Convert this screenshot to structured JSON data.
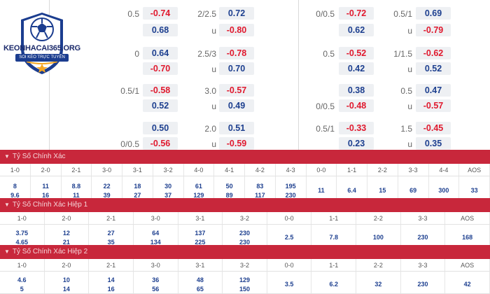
{
  "logo": {
    "title": "KEONHACAI365.ORG",
    "subtitle": "SOI KÈO TRỰC TUYẾN"
  },
  "odds_rows": [
    {
      "l1": "0.5",
      "b1": "-0.74",
      "l2": "2/2.5",
      "b2": "0.72",
      "l3": "0/0.5",
      "b3": "-0.72",
      "l4": "0.5/1",
      "b4": "0.69"
    },
    {
      "l1": "",
      "b1": "0.68",
      "l2": "u",
      "b2": "-0.80",
      "l3": "",
      "b3": "0.62",
      "l4": "u",
      "b4": "-0.79"
    },
    {
      "l1": "0",
      "b1": "0.64",
      "l2": "2.5/3",
      "b2": "-0.78",
      "l3": "0.5",
      "b3": "-0.52",
      "l4": "1/1.5",
      "b4": "-0.62"
    },
    {
      "l1": "",
      "b1": "-0.70",
      "l2": "u",
      "b2": "0.70",
      "l3": "",
      "b3": "0.42",
      "l4": "u",
      "b4": "0.52"
    },
    {
      "l1": "0.5/1",
      "b1": "-0.58",
      "l2": "3.0",
      "b2": "-0.57",
      "l3": "",
      "b3": "0.38",
      "l4": "0.5",
      "b4": "0.47"
    },
    {
      "l1": "",
      "b1": "0.52",
      "l2": "u",
      "b2": "0.49",
      "l3": "0/0.5",
      "b3": "-0.48",
      "l4": "u",
      "b4": "-0.57"
    },
    {
      "l1": "",
      "b1": "0.50",
      "l2": "2.0",
      "b2": "0.51",
      "l3": "0.5/1",
      "b3": "-0.33",
      "l4": "1.5",
      "b4": "-0.45"
    },
    {
      "l1": "0/0.5",
      "b1": "-0.56",
      "l2": "u",
      "b2": "-0.59",
      "l3": "",
      "b3": "0.23",
      "l4": "u",
      "b4": "0.35"
    }
  ],
  "sections": [
    {
      "title": "Tỷ Số Chính Xác",
      "headers": [
        "1-0",
        "2-0",
        "2-1",
        "3-0",
        "3-1",
        "3-2",
        "4-0",
        "4-1",
        "4-2",
        "4-3",
        "0-0",
        "1-1",
        "2-2",
        "3-3",
        "4-4",
        "AOS"
      ],
      "top": [
        "8",
        "11",
        "8.8",
        "22",
        "18",
        "30",
        "61",
        "50",
        "83",
        "195",
        "11",
        "6.4",
        "15",
        "69",
        "300",
        "33"
      ],
      "bottom": [
        "9.6",
        "16",
        "11",
        "39",
        "27",
        "37",
        "129",
        "89",
        "117",
        "230",
        "",
        "",
        "",
        "",
        "",
        ""
      ]
    },
    {
      "title": "Tỷ Số Chính Xác Hiệp 1",
      "headers": [
        "1-0",
        "2-0",
        "2-1",
        "3-0",
        "3-1",
        "3-2",
        "0-0",
        "1-1",
        "2-2",
        "3-3",
        "AOS"
      ],
      "top": [
        "3.75",
        "12",
        "27",
        "64",
        "137",
        "230",
        "2.5",
        "7.8",
        "100",
        "230",
        "168"
      ],
      "bottom": [
        "4.65",
        "21",
        "35",
        "134",
        "225",
        "230",
        "",
        "",
        "",
        "",
        ""
      ]
    },
    {
      "title": "Tỷ Số Chính Xác Hiệp 2",
      "headers": [
        "1-0",
        "2-0",
        "2-1",
        "3-0",
        "3-1",
        "3-2",
        "0-0",
        "1-1",
        "2-2",
        "3-3",
        "AOS"
      ],
      "top": [
        "4.6",
        "10",
        "14",
        "36",
        "48",
        "129",
        "3.5",
        "6.2",
        "32",
        "230",
        "42"
      ],
      "bottom": [
        "5",
        "14",
        "16",
        "56",
        "65",
        "150",
        "",
        "",
        "",
        "",
        ""
      ]
    }
  ],
  "colors": {
    "negative": "#e0192e",
    "positive": "#1d3f8f",
    "header_bg": "#c8273b"
  }
}
